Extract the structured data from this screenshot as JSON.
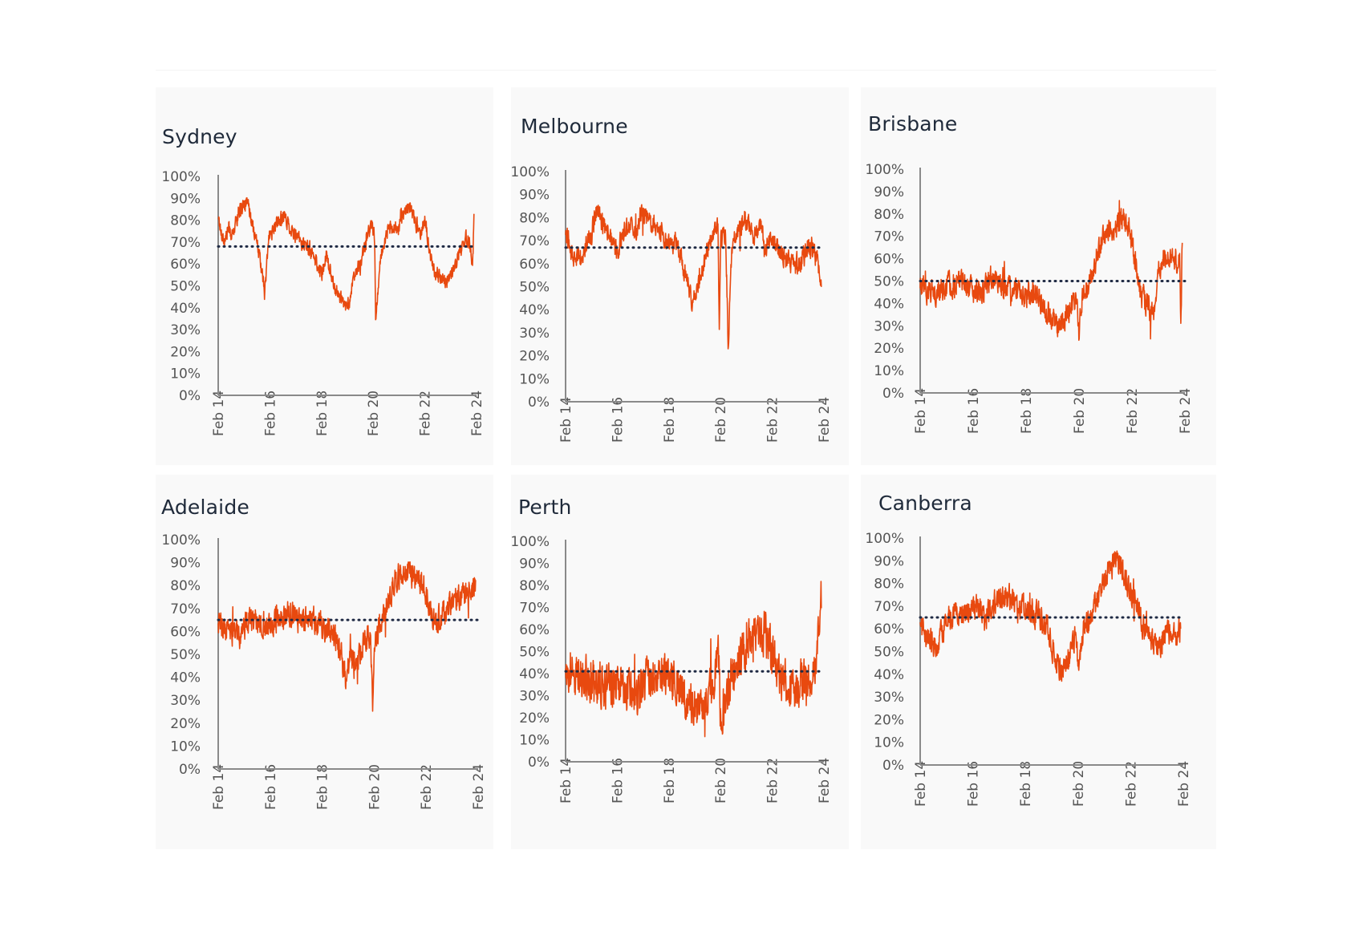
{
  "chart_data": [
    {
      "type": "line",
      "title": "Sydney",
      "x_ticks": [
        "Feb 14",
        "Feb 16",
        "Feb 18",
        "Feb 20",
        "Feb 22",
        "Feb 24"
      ],
      "y_ticks": [
        "0%",
        "10%",
        "20%",
        "30%",
        "40%",
        "50%",
        "60%",
        "70%",
        "80%",
        "90%",
        "100%"
      ],
      "ylim": [
        0,
        100
      ],
      "reference_value": 68,
      "line_color": "#e8490f",
      "reference_color": "#1f2a44",
      "noise": 3,
      "series": [
        {
          "x": [
            2014.1,
            2014.2,
            2014.35,
            2014.5,
            2014.65,
            2014.8,
            2015.0,
            2015.2,
            2015.35,
            2015.55,
            2015.75,
            2015.9,
            2015.97,
            2016.05,
            2016.25,
            2016.45,
            2016.6,
            2016.8,
            2017.0,
            2017.3,
            2017.6,
            2017.85,
            2018.1,
            2018.3,
            2018.5,
            2018.75,
            2018.95,
            2019.1,
            2019.4,
            2019.65,
            2019.9,
            2020.05,
            2020.1,
            2020.15,
            2020.2,
            2020.35,
            2020.6,
            2020.85,
            2021.1,
            2021.3,
            2021.55,
            2021.75,
            2021.9,
            2022.1,
            2022.4,
            2022.7,
            2022.9,
            2023.2,
            2023.45,
            2023.7,
            2023.85,
            2023.95,
            2024.0
          ],
          "y": [
            82,
            75,
            70,
            77,
            72,
            80,
            86,
            88,
            82,
            72,
            60,
            46,
            58,
            72,
            76,
            80,
            82,
            79,
            74,
            70,
            67,
            62,
            55,
            65,
            52,
            46,
            42,
            40,
            55,
            62,
            74,
            78,
            76,
            72,
            33,
            60,
            75,
            77,
            76,
            84,
            86,
            78,
            74,
            80,
            58,
            54,
            52,
            56,
            66,
            72,
            68,
            60,
            80
          ]
        }
      ]
    },
    {
      "type": "line",
      "title": "Melbourne",
      "x_ticks": [
        "Feb 14",
        "Feb 16",
        "Feb 18",
        "Feb 20",
        "Feb 22",
        "Feb 24"
      ],
      "y_ticks": [
        "0%",
        "10%",
        "20%",
        "30%",
        "40%",
        "50%",
        "60%",
        "70%",
        "80%",
        "90%",
        "100%"
      ],
      "ylim": [
        0,
        100
      ],
      "reference_value": 67,
      "line_color": "#e8490f",
      "reference_color": "#1f2a44",
      "noise": 4,
      "series": [
        {
          "x": [
            2014.1,
            2014.3,
            2014.5,
            2014.7,
            2014.9,
            2015.1,
            2015.3,
            2015.5,
            2015.7,
            2015.9,
            2016.1,
            2016.4,
            2016.6,
            2016.8,
            2017.0,
            2017.3,
            2017.6,
            2017.9,
            2018.1,
            2018.4,
            2018.6,
            2018.8,
            2019.0,
            2019.2,
            2019.5,
            2019.8,
            2019.95,
            2020.0,
            2020.05,
            2020.1,
            2020.3,
            2020.4,
            2020.5,
            2020.6,
            2020.8,
            2021.0,
            2021.2,
            2021.4,
            2021.6,
            2021.7,
            2021.8,
            2022.0,
            2022.3,
            2022.6,
            2022.9,
            2023.2,
            2023.5,
            2023.7,
            2023.85,
            2024.0
          ],
          "y": [
            74,
            66,
            62,
            64,
            68,
            72,
            84,
            78,
            74,
            68,
            66,
            74,
            78,
            72,
            82,
            80,
            76,
            72,
            68,
            70,
            62,
            52,
            44,
            48,
            62,
            74,
            76,
            74,
            30,
            70,
            72,
            22,
            60,
            72,
            74,
            80,
            78,
            72,
            78,
            76,
            64,
            72,
            66,
            62,
            60,
            60,
            68,
            66,
            60,
            48
          ]
        }
      ]
    },
    {
      "type": "line",
      "title": "Brisbane",
      "x_ticks": [
        "Feb 14",
        "Feb 16",
        "Feb 18",
        "Feb 20",
        "Feb 22",
        "Feb 24"
      ],
      "y_ticks": [
        "0%",
        "10%",
        "20%",
        "30%",
        "40%",
        "50%",
        "60%",
        "70%",
        "80%",
        "90%",
        "100%"
      ],
      "ylim": [
        0,
        100
      ],
      "reference_value": 50,
      "line_color": "#e8490f",
      "reference_color": "#1f2a44",
      "noise": 5,
      "series": [
        {
          "x": [
            2014.1,
            2014.4,
            2014.8,
            2015.2,
            2015.6,
            2016.0,
            2016.4,
            2016.8,
            2017.2,
            2017.6,
            2018.0,
            2018.5,
            2018.9,
            2019.2,
            2019.5,
            2019.8,
            2020.0,
            2020.1,
            2020.15,
            2020.2,
            2020.4,
            2020.7,
            2021.0,
            2021.2,
            2021.5,
            2021.8,
            2022.0,
            2022.2,
            2022.4,
            2022.6,
            2022.9,
            2023.1,
            2023.3,
            2023.5,
            2023.7,
            2023.9,
            2023.95,
            2024.0
          ],
          "y": [
            48,
            46,
            45,
            48,
            50,
            46,
            44,
            52,
            48,
            46,
            44,
            46,
            36,
            30,
            32,
            40,
            44,
            24,
            36,
            42,
            46,
            58,
            68,
            72,
            74,
            78,
            74,
            60,
            46,
            40,
            36,
            54,
            60,
            62,
            60,
            58,
            30,
            70
          ]
        }
      ]
    },
    {
      "type": "line",
      "title": "Adelaide",
      "x_ticks": [
        "Feb 14",
        "Feb 16",
        "Feb 18",
        "Feb 20",
        "Feb 22",
        "Feb 24"
      ],
      "y_ticks": [
        "0%",
        "10%",
        "20%",
        "30%",
        "40%",
        "50%",
        "60%",
        "70%",
        "80%",
        "90%",
        "100%"
      ],
      "ylim": [
        0,
        100
      ],
      "reference_value": 65,
      "line_color": "#e8490f",
      "reference_color": "#1f2a44",
      "noise": 5,
      "series": [
        {
          "x": [
            2014.1,
            2014.5,
            2014.9,
            2015.3,
            2015.7,
            2016.1,
            2016.5,
            2016.9,
            2017.3,
            2017.7,
            2018.1,
            2018.5,
            2018.8,
            2019.0,
            2019.2,
            2019.4,
            2019.7,
            2019.95,
            2020.05,
            2020.1,
            2020.3,
            2020.6,
            2020.9,
            2021.1,
            2021.4,
            2021.7,
            2022.0,
            2022.2,
            2022.5,
            2022.8,
            2023.0,
            2023.3,
            2023.6,
            2023.85,
            2024.0
          ],
          "y": [
            64,
            60,
            58,
            66,
            64,
            62,
            66,
            68,
            64,
            66,
            62,
            60,
            52,
            38,
            50,
            44,
            56,
            58,
            26,
            56,
            62,
            72,
            82,
            84,
            86,
            82,
            80,
            70,
            64,
            68,
            72,
            74,
            76,
            76,
            84
          ]
        }
      ]
    },
    {
      "type": "line",
      "title": "Perth",
      "x_ticks": [
        "Feb 14",
        "Feb 16",
        "Feb 18",
        "Feb 20",
        "Feb 22",
        "Feb 24"
      ],
      "y_ticks": [
        "0%",
        "10%",
        "20%",
        "30%",
        "40%",
        "50%",
        "60%",
        "70%",
        "80%",
        "90%",
        "100%"
      ],
      "ylim": [
        0,
        100
      ],
      "reference_value": 41,
      "line_color": "#e8490f",
      "reference_color": "#1f2a44",
      "noise": 9,
      "series": [
        {
          "x": [
            2014.1,
            2014.5,
            2014.9,
            2015.3,
            2015.7,
            2016.1,
            2016.5,
            2016.9,
            2017.3,
            2017.7,
            2018.1,
            2018.5,
            2018.8,
            2019.1,
            2019.4,
            2019.7,
            2019.9,
            2020.0,
            2020.1,
            2020.3,
            2020.6,
            2020.9,
            2021.2,
            2021.5,
            2021.8,
            2022.1,
            2022.4,
            2022.7,
            2023.0,
            2023.3,
            2023.6,
            2023.8,
            2024.0
          ],
          "y": [
            42,
            40,
            38,
            36,
            34,
            36,
            34,
            32,
            36,
            38,
            38,
            36,
            28,
            26,
            24,
            30,
            40,
            60,
            20,
            30,
            40,
            48,
            56,
            60,
            58,
            50,
            38,
            34,
            32,
            36,
            40,
            46,
            72
          ]
        }
      ]
    },
    {
      "type": "line",
      "title": "Canberra",
      "x_ticks": [
        "Feb 14",
        "Feb 16",
        "Feb 18",
        "Feb 20",
        "Feb 22",
        "Feb 24"
      ],
      "y_ticks": [
        "0%",
        "10%",
        "20%",
        "30%",
        "40%",
        "50%",
        "60%",
        "70%",
        "80%",
        "90%",
        "100%"
      ],
      "ylim": [
        0,
        100
      ],
      "reference_value": 65,
      "line_color": "#e8490f",
      "reference_color": "#1f2a44",
      "noise": 5,
      "series": [
        {
          "x": [
            2014.1,
            2014.4,
            2014.7,
            2015.0,
            2015.4,
            2015.8,
            2016.2,
            2016.6,
            2017.0,
            2017.4,
            2017.8,
            2018.2,
            2018.6,
            2018.9,
            2019.2,
            2019.5,
            2019.8,
            2020.0,
            2020.1,
            2020.3,
            2020.6,
            2020.9,
            2021.2,
            2021.5,
            2021.8,
            2022.0,
            2022.3,
            2022.6,
            2022.9,
            2023.2,
            2023.5,
            2023.7,
            2023.9,
            2024.0
          ],
          "y": [
            62,
            56,
            52,
            60,
            68,
            66,
            70,
            66,
            72,
            74,
            70,
            68,
            66,
            62,
            48,
            40,
            50,
            56,
            46,
            58,
            66,
            74,
            84,
            90,
            86,
            78,
            72,
            60,
            56,
            52,
            60,
            56,
            56,
            62
          ]
        }
      ]
    }
  ]
}
